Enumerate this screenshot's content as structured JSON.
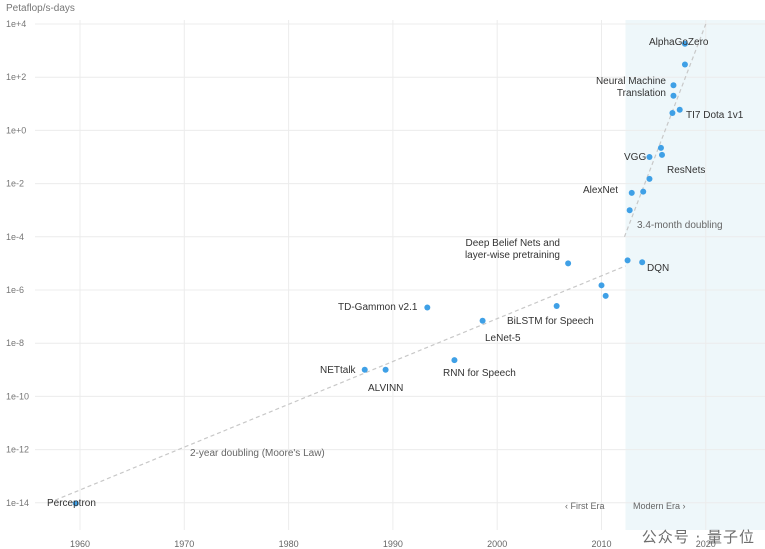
{
  "chart_data": {
    "type": "scatter",
    "title": "",
    "ylabel": "Petaflop/s-days",
    "xlabel": "",
    "y_scale": "log10",
    "ylim": [
      1e-14,
      10000.0
    ],
    "xlim": [
      1957,
      2020
    ],
    "x_ticks": [
      "1960",
      "1970",
      "1980",
      "1990",
      "2000",
      "2010",
      "2020"
    ],
    "y_ticks": [
      "1e+4",
      "1e+2",
      "1e+0",
      "1e-2",
      "1e-4",
      "1e-6",
      "1e-8",
      "1e-10",
      "1e-12",
      "1e-14"
    ],
    "grid": true,
    "modern_era_start": 2012.3,
    "era_labels": {
      "first": "‹ First Era",
      "modern": "Modern Era ›"
    },
    "series": [
      {
        "points": [
          {
            "x": 1959.6,
            "y": 9.5e-15,
            "label": "Perceptron"
          },
          {
            "x": 1987.3,
            "y": 1e-09,
            "label": "NETtalk"
          },
          {
            "x": 1989.3,
            "y": 1e-09,
            "label": "ALVINN"
          },
          {
            "x": 1993.3,
            "y": 2.2e-07,
            "label": "TD-Gammon v2.1"
          },
          {
            "x": 1995.9,
            "y": 2.3e-09,
            "label": "RNN for Speech"
          },
          {
            "x": 1998.6,
            "y": 7e-08,
            "label": "LeNet-5"
          },
          {
            "x": 2005.7,
            "y": 2.5e-07,
            "label": "BiLSTM for Speech"
          },
          {
            "x": 2006.8,
            "y": 1e-05,
            "label": "Deep Belief Nets and layer-wise pretraining"
          },
          {
            "x": 2010.0,
            "y": 1.5e-06,
            "label": ""
          },
          {
            "x": 2010.4,
            "y": 6e-07,
            "label": ""
          },
          {
            "x": 2012.5,
            "y": 1.3e-05,
            "label": ""
          },
          {
            "x": 2012.7,
            "y": 0.001,
            "label": ""
          },
          {
            "x": 2012.9,
            "y": 0.0045,
            "label": "AlexNet"
          },
          {
            "x": 2013.9,
            "y": 1.1e-05,
            "label": "DQN"
          },
          {
            "x": 2014.0,
            "y": 0.005,
            "label": ""
          },
          {
            "x": 2014.6,
            "y": 0.015,
            "label": ""
          },
          {
            "x": 2014.6,
            "y": 0.1,
            "label": "VGG"
          },
          {
            "x": 2015.7,
            "y": 0.22,
            "label": ""
          },
          {
            "x": 2015.8,
            "y": 0.12,
            "label": "ResNets"
          },
          {
            "x": 2016.8,
            "y": 4.5,
            "label": ""
          },
          {
            "x": 2016.9,
            "y": 20.0,
            "label": ""
          },
          {
            "x": 2016.9,
            "y": 50.0,
            "label": "Neural Machine Translation"
          },
          {
            "x": 2017.5,
            "y": 6.0,
            "label": "TI7 Dota 1v1"
          },
          {
            "x": 2018.0,
            "y": 300.0,
            "label": ""
          },
          {
            "x": 2018.0,
            "y": 1800.0,
            "label": "AlphaGoZero"
          }
        ]
      }
    ],
    "trend_lines": [
      {
        "label": "2-year doubling (Moore's Law)",
        "from": [
          1957,
          1e-14
        ],
        "to": [
          2012.3,
          8e-06
        ]
      },
      {
        "label": "3.4-month doubling",
        "from": [
          2012.2,
          0.0001
        ],
        "to": [
          2020,
          10000.0
        ]
      }
    ]
  },
  "watermark": "公众号 · 量子位",
  "colors": {
    "point": "#3fa0e6",
    "modern_bg": "#eef7fa",
    "grid": "#ececec",
    "text": "#333333",
    "trend": "#c8c8c8"
  }
}
